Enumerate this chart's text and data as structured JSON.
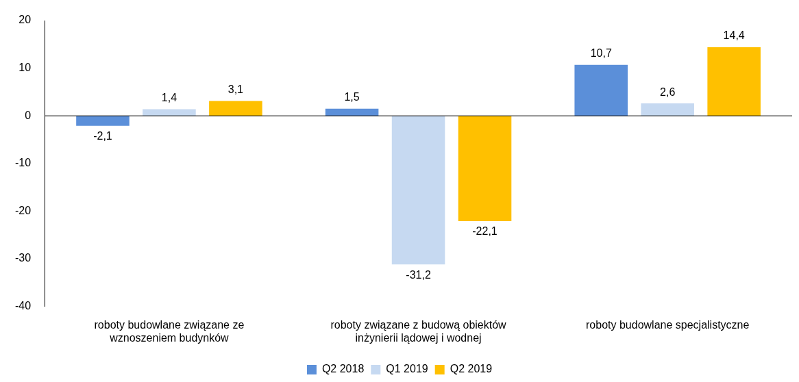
{
  "chart_data": {
    "type": "bar",
    "categories": [
      "roboty budowlane związane ze wznoszeniem budynków",
      "roboty związane z budową obiektów inżynierii lądowej i wodnej",
      "roboty budowlane specjalistyczne"
    ],
    "series": [
      {
        "name": "Q2 2018",
        "color": "#5b8fd9",
        "values": [
          -2.1,
          1.5,
          10.7
        ],
        "value_labels": [
          "-2,1",
          "1,5",
          "10,7"
        ]
      },
      {
        "name": "Q1 2019",
        "color": "#c6d9f1",
        "values": [
          1.4,
          -31.2,
          2.6
        ],
        "value_labels": [
          "1,4",
          "-31,2",
          "2,6"
        ]
      },
      {
        "name": "Q2 2019",
        "color": "#ffc000",
        "values": [
          3.1,
          -22.1,
          14.4
        ],
        "value_labels": [
          "3,1",
          "-22,1",
          "14,4"
        ]
      }
    ],
    "ylim": [
      -40,
      20
    ],
    "yticks": [
      -40,
      -30,
      -20,
      -10,
      0,
      10,
      20
    ],
    "grid": false,
    "legend": "bottom",
    "ref_lines": [
      {
        "axis": "y",
        "value": 0,
        "color": "#000000"
      }
    ]
  }
}
